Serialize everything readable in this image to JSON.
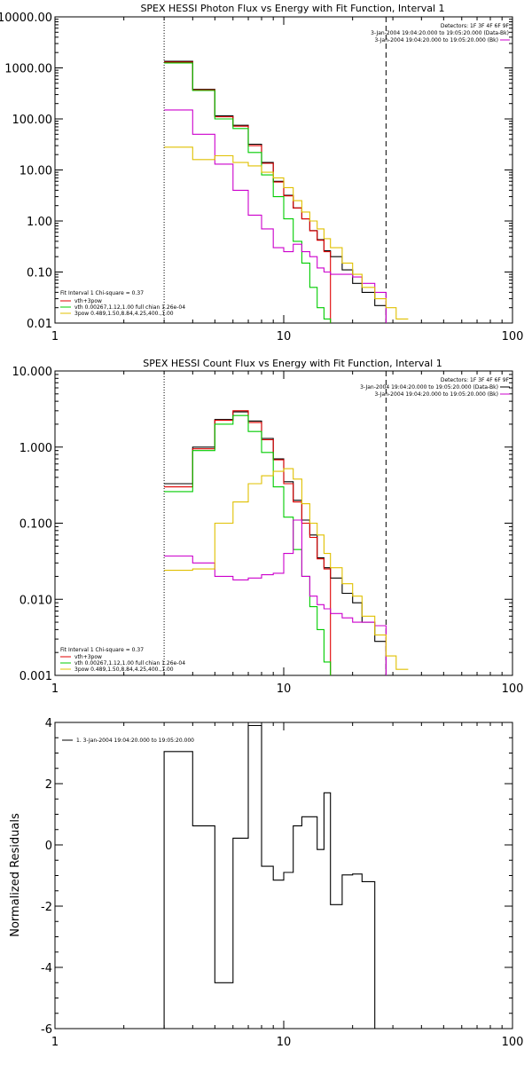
{
  "chart_data": [
    {
      "type": "line",
      "title": "SPEX HESSI Photon Flux vs Energy with Fit Function, Interval 1",
      "xscale": "log",
      "yscale": "log",
      "xlim": [
        1,
        100
      ],
      "ylim": [
        0.01,
        10000
      ],
      "xticks": [
        1,
        10,
        100
      ],
      "xtick_labels": [
        "1",
        "10",
        "100"
      ],
      "yticks": [
        0.01,
        0.1,
        1,
        10,
        100,
        1000,
        10000
      ],
      "ytick_labels": [
        "0.01",
        "0.10",
        "1.00",
        "10.00",
        "100.00",
        "1000.00",
        "10000.00"
      ],
      "vlines": [
        {
          "x": 3.0,
          "style": "dotted"
        },
        {
          "x": 28.0,
          "style": "dashed"
        }
      ],
      "header_lines": [
        "Detectors: 1F 3F 4F 6F 9F",
        "3-Jan-2004 19:04:20.000 to 19:05:20.000 (Data-Bk)",
        "3-Jan-2004 19:04:20.000 to 19:05:20.000 (Bk)"
      ],
      "legend": [
        "Fit Interval 1   Chi-square = 0.37",
        "vth+3pow",
        "vth 0.00267,1.12,1.00  full chian 1.26e-04",
        "3pow 0.489,1.50,8.84,4.25,400.,1.00"
      ],
      "x_edges": [
        3.0,
        4.0,
        5.0,
        6.0,
        7.0,
        8.0,
        9.0,
        10.0,
        11.0,
        12.0,
        13.0,
        14.0,
        15.0,
        16.0,
        18.0,
        20.0,
        22.0,
        25.0,
        28.0,
        31.0,
        35.0
      ],
      "series": [
        {
          "color": "#000000",
          "values": [
            1350,
            380,
            115,
            75,
            32,
            14,
            6,
            3.2,
            1.8,
            1.1,
            0.65,
            0.43,
            0.26,
            0.2,
            0.11,
            0.06,
            0.04,
            0.022,
            null,
            null
          ]
        },
        {
          "color": "#e00000",
          "values": [
            1300,
            370,
            110,
            72,
            30,
            13.5,
            5.8,
            3.1,
            1.8,
            1.1,
            0.64,
            0.42,
            0.25,
            null,
            null,
            null,
            null,
            null,
            null,
            null
          ]
        },
        {
          "color": "#00cc00",
          "values": [
            1250,
            360,
            100,
            65,
            22,
            8,
            3,
            1.1,
            0.4,
            0.15,
            0.05,
            0.02,
            0.012,
            null,
            null,
            null,
            null,
            null,
            null,
            null
          ]
        },
        {
          "color": "#cc00cc",
          "values": [
            150,
            50,
            13,
            4,
            1.3,
            0.7,
            0.3,
            0.25,
            0.35,
            0.25,
            0.2,
            0.12,
            0.1,
            0.09,
            0.09,
            0.08,
            0.06,
            0.04,
            null,
            null
          ]
        },
        {
          "color": "#e0c000",
          "values": [
            28,
            16,
            19,
            14,
            12,
            9,
            7,
            4.5,
            2.5,
            1.5,
            1,
            0.7,
            0.45,
            0.3,
            0.15,
            0.09,
            0.05,
            0.03,
            0.02,
            0.012
          ]
        }
      ]
    },
    {
      "type": "line",
      "title": "SPEX HESSI Count Flux vs Energy with Fit Function, Interval 1",
      "xscale": "log",
      "yscale": "log",
      "xlim": [
        1,
        100
      ],
      "ylim": [
        0.001,
        10
      ],
      "xticks": [
        1,
        10,
        100
      ],
      "xtick_labels": [
        "1",
        "10",
        "100"
      ],
      "yticks": [
        0.001,
        0.01,
        0.1,
        1,
        10
      ],
      "ytick_labels": [
        "0.001",
        "0.010",
        "0.100",
        "1.000",
        "10.000"
      ],
      "vlines": [
        {
          "x": 3.0,
          "style": "dotted"
        },
        {
          "x": 28.0,
          "style": "dashed"
        }
      ],
      "header_lines": [
        "Detectors: 1F 3F 4F 6F 9F",
        "3-Jan-2004 19:04:20.000 to 19:05:20.000 (Data-Bk)",
        "3-Jan-2004 19:04:20.000 to 19:05:20.000 (Bk)"
      ],
      "legend": [
        "Fit Interval 1   Chi-square = 0.37",
        "vth+3pow",
        "vth 0.00267,1.12,1.00  full chian 1.26e-04",
        "3pow 0.489,1.50,8.84,4.25,400.,1.00"
      ],
      "x_edges": [
        3.0,
        4.0,
        5.0,
        6.0,
        7.0,
        8.0,
        9.0,
        10.0,
        11.0,
        12.0,
        13.0,
        14.0,
        15.0,
        16.0,
        18.0,
        20.0,
        22.0,
        25.0,
        28.0,
        31.0,
        35.0
      ],
      "series": [
        {
          "color": "#000000",
          "values": [
            0.33,
            1.0,
            2.3,
            2.9,
            2.2,
            1.3,
            0.7,
            0.35,
            0.2,
            0.11,
            0.07,
            0.035,
            0.026,
            0.019,
            0.012,
            0.009,
            0.005,
            0.0028,
            null,
            null
          ]
        },
        {
          "color": "#e00000",
          "values": [
            0.3,
            0.95,
            2.25,
            3.0,
            2.1,
            1.25,
            0.68,
            0.33,
            0.19,
            0.1,
            0.065,
            0.034,
            0.025,
            null,
            null,
            null,
            null,
            null,
            null,
            null
          ]
        },
        {
          "color": "#00cc00",
          "values": [
            0.26,
            0.9,
            2.0,
            2.6,
            1.6,
            0.85,
            0.3,
            0.12,
            0.045,
            0.02,
            0.008,
            0.004,
            0.0015,
            null,
            null,
            null,
            null,
            null,
            null,
            null
          ]
        },
        {
          "color": "#cc00cc",
          "values": [
            0.037,
            0.03,
            0.02,
            0.018,
            0.019,
            0.021,
            0.022,
            0.04,
            0.11,
            0.02,
            0.011,
            0.0085,
            0.0075,
            0.0065,
            0.0057,
            0.005,
            0.005,
            0.0045,
            null,
            null
          ]
        },
        {
          "color": "#e0c000",
          "values": [
            0.024,
            0.025,
            0.1,
            0.19,
            0.33,
            0.42,
            0.48,
            0.52,
            0.38,
            0.18,
            0.1,
            0.07,
            0.04,
            0.026,
            0.016,
            0.011,
            0.006,
            0.0034,
            0.0018,
            0.0012
          ]
        }
      ]
    },
    {
      "type": "line",
      "title": "",
      "xscale": "log",
      "yscale": "linear",
      "xlim": [
        1,
        100
      ],
      "ylim": [
        -6,
        4
      ],
      "xticks": [
        1,
        10,
        100
      ],
      "xtick_labels": [
        "1",
        "10",
        "100"
      ],
      "yticks": [
        -6,
        -4,
        -2,
        0,
        2,
        4
      ],
      "ytick_labels": [
        "-6",
        "-4",
        "-2",
        "0",
        "2",
        "4"
      ],
      "ylabel": "Normalized Residuals",
      "legend": [
        "1.  3-Jan-2004 19:04:20.000 to 19:05:20.000"
      ],
      "x_edges": [
        3.0,
        4.0,
        5.0,
        6.0,
        7.0,
        8.0,
        9.0,
        10.0,
        11.0,
        12.0,
        13.0,
        14.0,
        15.0,
        16.0,
        18.0,
        20.0,
        22.0,
        25.0,
        28.0
      ],
      "series": [
        {
          "color": "#000000",
          "values": [
            3.05,
            0.62,
            -4.5,
            0.22,
            3.9,
            -0.7,
            -1.15,
            -0.9,
            0.62,
            0.92,
            0.92,
            -0.15,
            1.7,
            -1.95,
            -0.98,
            -0.95,
            -1.2
          ],
          "closed_edges": true
        }
      ]
    }
  ]
}
